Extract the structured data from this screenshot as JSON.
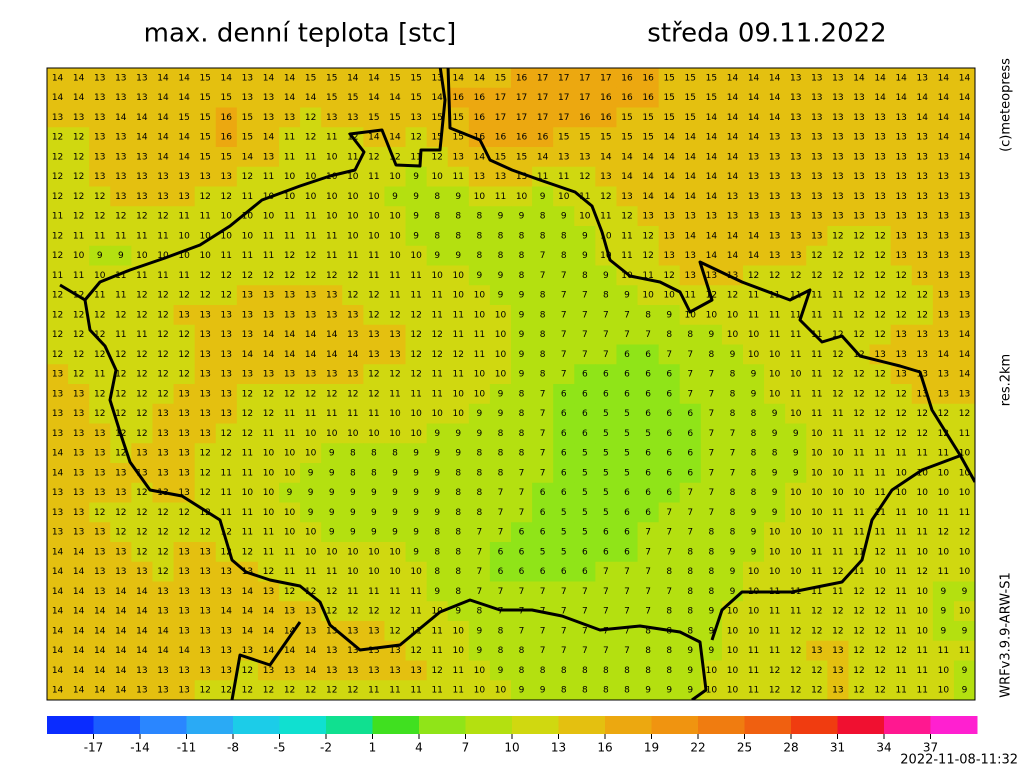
{
  "header": {
    "title": "max. denní teplota [stc]",
    "date": "středa 09.11.2022"
  },
  "side_labels": {
    "copyright": "(c)meteopress",
    "resolution": "res.2km",
    "model": "WRFv3.9.9-ARW-S1"
  },
  "run_time": "2022-11-08-11:32",
  "grid": {
    "rows": [
      [
        14,
        14,
        13,
        13,
        13,
        14,
        14,
        15,
        14,
        13,
        14,
        14,
        15,
        15,
        14,
        14,
        15,
        15,
        13,
        14,
        14,
        15,
        16,
        17,
        17,
        17,
        17,
        16,
        16,
        15,
        15,
        15,
        14,
        14,
        14,
        13,
        13,
        13,
        14,
        14,
        14,
        13,
        14,
        14
      ],
      [
        14,
        14,
        13,
        13,
        13,
        14,
        14,
        15,
        15,
        13,
        13,
        14,
        14,
        15,
        15,
        14,
        14,
        15,
        14,
        16,
        16,
        17,
        17,
        17,
        17,
        17,
        16,
        16,
        16,
        15,
        15,
        15,
        14,
        14,
        14,
        13,
        13,
        13,
        13,
        14,
        14,
        14,
        14,
        14
      ],
      [
        13,
        13,
        13,
        14,
        14,
        14,
        15,
        15,
        16,
        15,
        13,
        13,
        12,
        13,
        13,
        15,
        15,
        13,
        15,
        15,
        16,
        17,
        17,
        17,
        17,
        16,
        16,
        15,
        15,
        15,
        15,
        14,
        14,
        14,
        14,
        13,
        13,
        13,
        13,
        13,
        13,
        14,
        14,
        14
      ],
      [
        12,
        12,
        13,
        13,
        14,
        14,
        14,
        15,
        16,
        15,
        14,
        11,
        12,
        11,
        12,
        14,
        14,
        12,
        15,
        15,
        16,
        16,
        16,
        16,
        15,
        15,
        15,
        15,
        15,
        14,
        14,
        14,
        14,
        14,
        13,
        13,
        13,
        13,
        13,
        13,
        13,
        13,
        14,
        14
      ],
      [
        12,
        12,
        13,
        13,
        13,
        14,
        14,
        15,
        15,
        14,
        13,
        11,
        11,
        10,
        11,
        12,
        12,
        11,
        12,
        13,
        14,
        15,
        15,
        14,
        13,
        13,
        14,
        14,
        14,
        14,
        14,
        14,
        14,
        13,
        13,
        13,
        13,
        13,
        13,
        13,
        13,
        13,
        13,
        14
      ],
      [
        12,
        12,
        13,
        13,
        13,
        13,
        13,
        13,
        13,
        12,
        11,
        10,
        10,
        10,
        10,
        11,
        10,
        9,
        10,
        11,
        13,
        13,
        13,
        11,
        11,
        12,
        13,
        14,
        14,
        14,
        14,
        14,
        14,
        13,
        13,
        13,
        13,
        13,
        13,
        13,
        13,
        13,
        13,
        13
      ],
      [
        12,
        12,
        12,
        13,
        13,
        13,
        13,
        12,
        12,
        11,
        10,
        10,
        10,
        10,
        10,
        10,
        9,
        9,
        8,
        9,
        10,
        11,
        10,
        9,
        10,
        11,
        12,
        13,
        14,
        14,
        14,
        14,
        13,
        13,
        13,
        13,
        13,
        13,
        13,
        13,
        13,
        13,
        13,
        13
      ],
      [
        11,
        12,
        12,
        12,
        12,
        12,
        11,
        11,
        10,
        10,
        10,
        11,
        11,
        10,
        10,
        10,
        10,
        9,
        8,
        8,
        8,
        9,
        9,
        8,
        9,
        10,
        11,
        12,
        13,
        13,
        13,
        13,
        13,
        13,
        13,
        13,
        13,
        13,
        13,
        13,
        13,
        13,
        13,
        13
      ],
      [
        12,
        11,
        11,
        11,
        11,
        11,
        10,
        10,
        10,
        10,
        11,
        11,
        11,
        11,
        10,
        10,
        10,
        9,
        8,
        8,
        8,
        8,
        8,
        8,
        8,
        9,
        10,
        11,
        12,
        13,
        14,
        14,
        14,
        14,
        13,
        13,
        13,
        12,
        12,
        12,
        13,
        13,
        13,
        13
      ],
      [
        12,
        10,
        9,
        9,
        10,
        10,
        10,
        10,
        11,
        11,
        11,
        12,
        12,
        11,
        11,
        11,
        10,
        10,
        9,
        9,
        8,
        8,
        8,
        7,
        8,
        9,
        10,
        11,
        12,
        13,
        13,
        14,
        14,
        14,
        13,
        13,
        12,
        12,
        12,
        12,
        13,
        13,
        13,
        13
      ],
      [
        11,
        11,
        10,
        11,
        11,
        11,
        11,
        12,
        12,
        12,
        12,
        12,
        12,
        12,
        12,
        11,
        11,
        11,
        10,
        10,
        9,
        9,
        8,
        7,
        7,
        8,
        9,
        10,
        11,
        12,
        13,
        13,
        13,
        12,
        12,
        12,
        12,
        12,
        12,
        12,
        12,
        13,
        13,
        13
      ],
      [
        12,
        12,
        11,
        11,
        12,
        12,
        12,
        12,
        12,
        13,
        13,
        13,
        13,
        13,
        12,
        12,
        11,
        11,
        11,
        10,
        10,
        9,
        9,
        8,
        7,
        7,
        8,
        9,
        10,
        10,
        11,
        12,
        12,
        11,
        11,
        11,
        11,
        11,
        12,
        12,
        12,
        12,
        13,
        13
      ],
      [
        12,
        12,
        12,
        12,
        12,
        12,
        13,
        13,
        13,
        13,
        13,
        13,
        13,
        13,
        13,
        12,
        12,
        12,
        11,
        11,
        10,
        10,
        9,
        8,
        7,
        7,
        7,
        7,
        8,
        9,
        10,
        10,
        10,
        11,
        11,
        11,
        11,
        11,
        12,
        12,
        12,
        12,
        13,
        13
      ],
      [
        12,
        12,
        12,
        11,
        11,
        12,
        12,
        13,
        13,
        13,
        14,
        14,
        14,
        14,
        13,
        13,
        13,
        12,
        12,
        11,
        11,
        10,
        9,
        8,
        7,
        7,
        7,
        7,
        7,
        8,
        8,
        9,
        10,
        10,
        11,
        11,
        11,
        12,
        12,
        12,
        13,
        13,
        13,
        14
      ],
      [
        12,
        12,
        12,
        12,
        12,
        12,
        12,
        13,
        13,
        14,
        14,
        14,
        14,
        14,
        14,
        13,
        13,
        12,
        12,
        12,
        11,
        10,
        9,
        8,
        7,
        7,
        7,
        6,
        6,
        7,
        7,
        8,
        9,
        10,
        10,
        11,
        11,
        12,
        12,
        13,
        13,
        13,
        14,
        14
      ],
      [
        13,
        12,
        11,
        12,
        12,
        12,
        12,
        13,
        13,
        13,
        13,
        13,
        13,
        13,
        13,
        12,
        12,
        12,
        11,
        11,
        10,
        10,
        9,
        8,
        7,
        6,
        6,
        6,
        6,
        6,
        7,
        7,
        8,
        9,
        10,
        10,
        11,
        12,
        12,
        12,
        13,
        13,
        13,
        14
      ],
      [
        13,
        13,
        12,
        12,
        12,
        12,
        13,
        13,
        13,
        12,
        12,
        12,
        12,
        12,
        12,
        12,
        11,
        11,
        11,
        10,
        10,
        9,
        8,
        7,
        6,
        6,
        6,
        6,
        6,
        6,
        7,
        7,
        8,
        9,
        10,
        11,
        11,
        12,
        12,
        12,
        12,
        13,
        13,
        13
      ],
      [
        13,
        13,
        12,
        12,
        12,
        13,
        13,
        13,
        13,
        12,
        12,
        11,
        11,
        11,
        11,
        11,
        10,
        10,
        10,
        10,
        9,
        9,
        8,
        7,
        6,
        6,
        5,
        5,
        6,
        6,
        6,
        7,
        8,
        8,
        9,
        10,
        11,
        11,
        12,
        12,
        12,
        12,
        12,
        12
      ],
      [
        13,
        13,
        13,
        12,
        12,
        13,
        13,
        13,
        12,
        12,
        11,
        11,
        10,
        10,
        10,
        10,
        10,
        10,
        9,
        9,
        9,
        8,
        8,
        7,
        6,
        6,
        5,
        5,
        5,
        6,
        6,
        7,
        7,
        8,
        9,
        9,
        10,
        11,
        11,
        12,
        12,
        12,
        12,
        11
      ],
      [
        14,
        13,
        13,
        12,
        13,
        13,
        13,
        12,
        12,
        11,
        10,
        10,
        10,
        9,
        8,
        8,
        8,
        9,
        9,
        9,
        8,
        8,
        8,
        7,
        6,
        5,
        5,
        5,
        6,
        6,
        6,
        7,
        7,
        8,
        8,
        9,
        10,
        10,
        11,
        11,
        11,
        11,
        11,
        10
      ],
      [
        14,
        13,
        13,
        13,
        13,
        13,
        13,
        12,
        11,
        11,
        10,
        10,
        9,
        9,
        8,
        8,
        9,
        9,
        9,
        8,
        8,
        8,
        7,
        7,
        6,
        5,
        5,
        5,
        6,
        6,
        6,
        7,
        7,
        8,
        9,
        9,
        10,
        10,
        11,
        11,
        10,
        10,
        10,
        10
      ],
      [
        13,
        13,
        13,
        13,
        12,
        13,
        13,
        12,
        11,
        10,
        10,
        9,
        9,
        9,
        9,
        9,
        9,
        9,
        9,
        8,
        8,
        7,
        7,
        6,
        6,
        5,
        5,
        6,
        6,
        6,
        7,
        7,
        8,
        8,
        9,
        10,
        10,
        10,
        10,
        11,
        10,
        10,
        10,
        10
      ],
      [
        13,
        13,
        12,
        12,
        12,
        12,
        12,
        12,
        11,
        11,
        10,
        10,
        9,
        9,
        9,
        9,
        9,
        9,
        9,
        8,
        8,
        7,
        7,
        6,
        5,
        5,
        5,
        6,
        6,
        7,
        7,
        7,
        8,
        9,
        9,
        10,
        10,
        11,
        11,
        11,
        11,
        10,
        11,
        11
      ],
      [
        13,
        13,
        13,
        12,
        12,
        12,
        12,
        12,
        12,
        11,
        11,
        10,
        10,
        9,
        9,
        9,
        9,
        9,
        8,
        8,
        7,
        7,
        6,
        6,
        5,
        5,
        6,
        6,
        7,
        7,
        7,
        8,
        8,
        9,
        10,
        10,
        10,
        11,
        11,
        11,
        11,
        11,
        12,
        12
      ],
      [
        14,
        14,
        13,
        13,
        12,
        12,
        13,
        13,
        12,
        12,
        11,
        11,
        10,
        10,
        10,
        10,
        10,
        9,
        8,
        8,
        7,
        6,
        6,
        5,
        5,
        6,
        6,
        6,
        7,
        7,
        8,
        8,
        9,
        9,
        10,
        10,
        11,
        11,
        11,
        12,
        11,
        10,
        10,
        10
      ],
      [
        14,
        14,
        13,
        13,
        13,
        12,
        13,
        13,
        13,
        13,
        12,
        11,
        11,
        11,
        10,
        10,
        10,
        10,
        8,
        8,
        7,
        6,
        6,
        6,
        6,
        6,
        7,
        7,
        7,
        8,
        8,
        8,
        9,
        10,
        10,
        10,
        11,
        12,
        11,
        10,
        11,
        12,
        11,
        10
      ],
      [
        14,
        14,
        13,
        14,
        14,
        13,
        13,
        13,
        13,
        14,
        13,
        12,
        12,
        12,
        11,
        11,
        11,
        11,
        9,
        8,
        7,
        7,
        7,
        7,
        7,
        7,
        7,
        7,
        7,
        7,
        8,
        8,
        9,
        10,
        11,
        11,
        11,
        11,
        12,
        12,
        11,
        10,
        9,
        9
      ],
      [
        14,
        14,
        14,
        14,
        14,
        13,
        13,
        13,
        14,
        14,
        14,
        13,
        13,
        12,
        12,
        12,
        12,
        11,
        10,
        9,
        8,
        7,
        7,
        7,
        7,
        7,
        7,
        7,
        7,
        8,
        8,
        9,
        10,
        10,
        11,
        11,
        12,
        12,
        12,
        12,
        11,
        10,
        9,
        10
      ],
      [
        14,
        14,
        14,
        14,
        14,
        14,
        13,
        13,
        13,
        14,
        14,
        14,
        13,
        13,
        13,
        13,
        12,
        11,
        11,
        10,
        9,
        8,
        7,
        7,
        7,
        7,
        7,
        7,
        8,
        8,
        8,
        9,
        10,
        10,
        11,
        12,
        12,
        12,
        12,
        12,
        11,
        10,
        9,
        9
      ],
      [
        14,
        14,
        14,
        14,
        14,
        14,
        14,
        13,
        13,
        13,
        14,
        14,
        14,
        13,
        13,
        13,
        13,
        12,
        11,
        10,
        9,
        8,
        8,
        7,
        7,
        7,
        7,
        7,
        8,
        8,
        9,
        9,
        10,
        11,
        11,
        12,
        13,
        13,
        12,
        12,
        12,
        11,
        11,
        11
      ],
      [
        14,
        14,
        14,
        14,
        13,
        13,
        13,
        13,
        13,
        12,
        13,
        13,
        14,
        13,
        13,
        13,
        13,
        13,
        12,
        11,
        10,
        9,
        8,
        8,
        8,
        8,
        8,
        8,
        8,
        8,
        9,
        10,
        10,
        11,
        12,
        12,
        12,
        13,
        12,
        12,
        11,
        11,
        10,
        9
      ],
      [
        14,
        14,
        14,
        14,
        13,
        13,
        13,
        12,
        12,
        12,
        12,
        12,
        12,
        12,
        12,
        11,
        11,
        11,
        11,
        11,
        10,
        10,
        9,
        9,
        8,
        8,
        8,
        8,
        9,
        9,
        9,
        10,
        10,
        11,
        12,
        12,
        12,
        13,
        12,
        12,
        11,
        11,
        10,
        9
      ]
    ]
  },
  "colorbar": {
    "range": [
      -20,
      40
    ],
    "ticks": [
      -17,
      -14,
      -11,
      -8,
      -5,
      -2,
      1,
      4,
      7,
      10,
      13,
      16,
      19,
      22,
      25,
      28,
      31,
      34,
      37
    ],
    "colors": [
      "#0a2cff",
      "#1a5cff",
      "#2a86ff",
      "#2aaaf5",
      "#1ccce8",
      "#10e0d0",
      "#10e090",
      "#40e020",
      "#90e418",
      "#b4e010",
      "#d0d810",
      "#e4c010",
      "#eca810",
      "#f09410",
      "#f07c10",
      "#f06010",
      "#f03c10",
      "#f01030",
      "#ff1890",
      "#ff20d0"
    ]
  }
}
